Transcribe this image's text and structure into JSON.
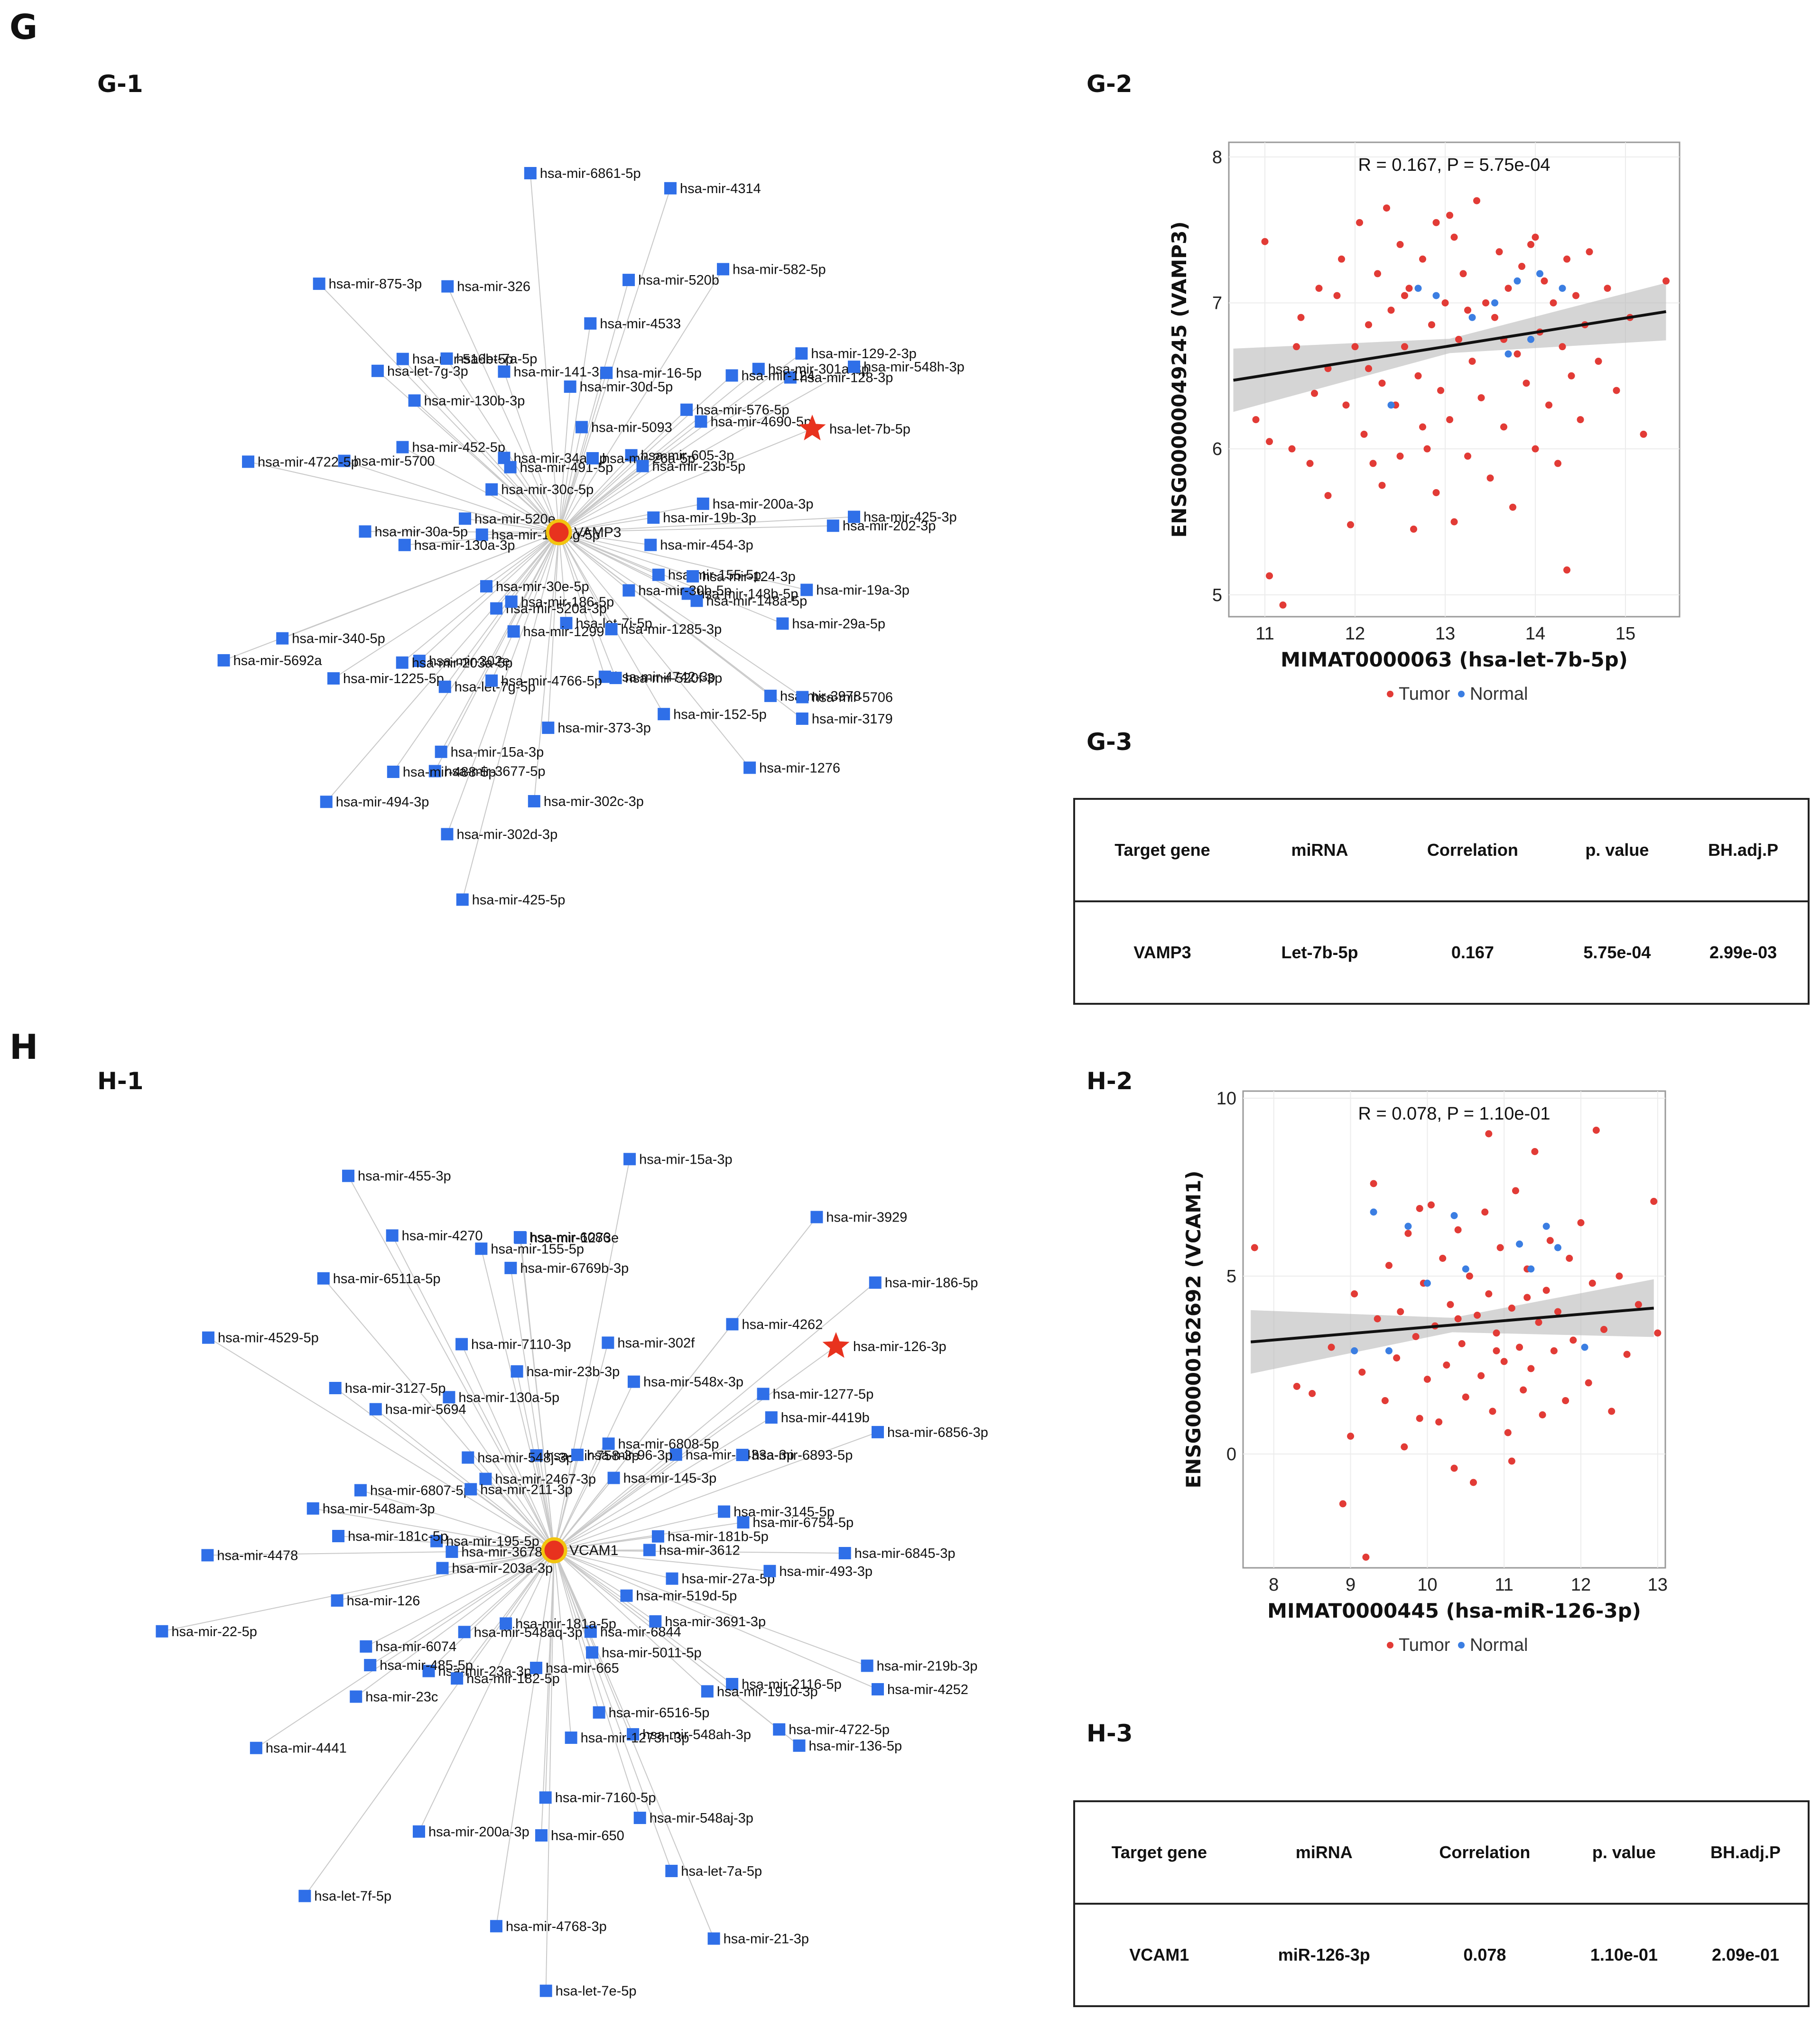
{
  "panel_G": {
    "letter": "G",
    "network_label": "G-1",
    "scatter_label": "G-2",
    "table_label": "G-3",
    "hub": "VAMP3",
    "highlight": "hsa-let-7b-5p",
    "nodes": [
      "hsa-mir-155-5p",
      "hsa-mir-148b-5p",
      "hsa-mir-3978",
      "hsa-mir-1276",
      "hsa-let-7i-5p",
      "hsa-mir-373-3p",
      "hsa-mir-15a-3p",
      "hsa-mir-302d-3p",
      "hsa-mir-520a-3p",
      "hsa-mir-302e",
      "hsa-mir-1225-5p",
      "hsa-mir-340-5p",
      "hsa-mir-520e",
      "hsa-mir-452-5p",
      "hsa-mir-516b-5p",
      "hsa-mir-326",
      "hsa-mir-34a-3p",
      "hsa-mir-30d-5p",
      "hsa-mir-520b",
      "hsa-mir-582-5p",
      "hsa-mir-605-3p",
      "hsa-mir-4690-5p",
      "hsa-mir-128-3p",
      "hsa-mir-425-3p",
      "hsa-mir-454-3p",
      "hsa-mir-148a-5p",
      "hsa-mir-29a-5p",
      "hsa-mir-3179",
      "hsa-mir-1285-3p",
      "hsa-mir-4742-3p",
      "hsa-mir-302c-3p",
      "hsa-mir-3677-5p",
      "hsa-mir-186-5p",
      "hsa-let-7g-5p",
      "hsa-mir-203a-5p",
      "hsa-mir-5692a",
      "hsa-mir-1273g-5p",
      "hsa-mir-130a-3p",
      "hsa-let-7g-3p",
      "hsa-mir-875-3p",
      "hsa-mir-491-5p",
      "hsa-mir-141-3p",
      "hsa-mir-4533",
      "hsa-mir-4314",
      "hsa-mir-26a-5p",
      "hsa-mir-576-5p",
      "hsa-mir-301a-3p",
      "hsa-mir-548h-3p",
      "hsa-mir-19b-3p",
      "hsa-mir-124-3p",
      "hsa-mir-19a-3p",
      "hsa-mir-5706",
      "hsa-mir-30b-5p",
      "hsa-mir-520f-3p",
      "hsa-mir-152-5p",
      "hsa-mir-425-5p",
      "hsa-mir-1299",
      "hsa-mir-4766-5p",
      "hsa-mir-488-5p",
      "hsa-mir-494-3p",
      "hsa-mir-30e-5p",
      "hsa-mir-30a-5p",
      "hsa-mir-5700",
      "hsa-mir-4722-5p",
      "hsa-mir-30c-5p",
      "hsa-mir-130b-3p",
      "hsa-let-7a-5p",
      "hsa-mir-6861-5p",
      "hsa-mir-5093",
      "hsa-mir-16-5p",
      "hsa-mir-124",
      "hsa-mir-129-2-3p",
      "hsa-mir-23b-5p",
      "hsa-mir-200a-3p",
      "hsa-mir-202-3p"
    ],
    "chart_data": {
      "type": "scatter",
      "stat_text": "R = 0.167, P = 5.75e-04",
      "xlabel": "MIMAT0000063 (hsa-let-7b-5p)",
      "ylabel": "ENSG00000049245 (VAMP3)",
      "xlim": [
        10.6,
        15.6
      ],
      "ylim": [
        4.85,
        8.1
      ],
      "xticks": [
        "11",
        "12",
        "13",
        "14",
        "15"
      ],
      "yticks": [
        "5",
        "6",
        "7",
        "8"
      ],
      "fit": {
        "x": [
          10.65,
          15.45
        ],
        "y": [
          6.47,
          6.94
        ]
      },
      "legend": [
        "Tumor",
        "Normal"
      ],
      "series": [
        {
          "name": "Tumor",
          "color": "#e23b36",
          "points": [
            [
              10.9,
              6.2
            ],
            [
              11.0,
              7.42
            ],
            [
              11.05,
              6.05
            ],
            [
              11.05,
              5.13
            ],
            [
              11.2,
              4.93
            ],
            [
              11.3,
              6.0
            ],
            [
              11.35,
              6.7
            ],
            [
              11.4,
              6.9
            ],
            [
              11.5,
              5.9
            ],
            [
              11.55,
              6.38
            ],
            [
              11.6,
              7.1
            ],
            [
              11.7,
              5.68
            ],
            [
              11.7,
              6.55
            ],
            [
              11.8,
              7.05
            ],
            [
              11.85,
              7.3
            ],
            [
              11.9,
              6.3
            ],
            [
              11.95,
              5.48
            ],
            [
              12.0,
              6.7
            ],
            [
              12.05,
              7.55
            ],
            [
              12.1,
              6.1
            ],
            [
              12.15,
              6.85
            ],
            [
              12.2,
              5.9
            ],
            [
              12.25,
              7.2
            ],
            [
              12.3,
              6.45
            ],
            [
              12.3,
              5.75
            ],
            [
              12.35,
              7.65
            ],
            [
              12.4,
              6.95
            ],
            [
              12.45,
              6.3
            ],
            [
              12.5,
              7.4
            ],
            [
              12.5,
              5.95
            ],
            [
              12.55,
              6.7
            ],
            [
              12.6,
              7.1
            ],
            [
              12.65,
              5.45
            ],
            [
              12.7,
              6.5
            ],
            [
              12.75,
              7.3
            ],
            [
              12.8,
              6.0
            ],
            [
              12.85,
              6.85
            ],
            [
              12.9,
              7.55
            ],
            [
              12.9,
              5.7
            ],
            [
              12.95,
              6.4
            ],
            [
              13.0,
              7.0
            ],
            [
              13.05,
              6.2
            ],
            [
              13.1,
              7.45
            ],
            [
              13.1,
              5.5
            ],
            [
              13.15,
              6.75
            ],
            [
              13.2,
              7.2
            ],
            [
              13.25,
              5.95
            ],
            [
              13.3,
              6.6
            ],
            [
              13.35,
              7.7
            ],
            [
              13.4,
              6.35
            ],
            [
              13.45,
              7.0
            ],
            [
              13.5,
              5.8
            ],
            [
              13.55,
              6.9
            ],
            [
              13.6,
              7.35
            ],
            [
              13.65,
              6.15
            ],
            [
              13.7,
              7.1
            ],
            [
              13.75,
              5.6
            ],
            [
              13.8,
              6.65
            ],
            [
              13.85,
              7.25
            ],
            [
              13.9,
              6.45
            ],
            [
              13.95,
              7.4
            ],
            [
              14.0,
              6.0
            ],
            [
              14.05,
              6.8
            ],
            [
              14.1,
              7.15
            ],
            [
              14.15,
              6.3
            ],
            [
              14.2,
              7.0
            ],
            [
              14.25,
              5.9
            ],
            [
              14.3,
              6.7
            ],
            [
              14.35,
              7.3
            ],
            [
              14.4,
              6.5
            ],
            [
              14.45,
              7.05
            ],
            [
              14.5,
              6.2
            ],
            [
              14.55,
              6.85
            ],
            [
              14.6,
              7.35
            ],
            [
              14.7,
              6.6
            ],
            [
              14.8,
              7.1
            ],
            [
              14.9,
              6.4
            ],
            [
              15.05,
              6.9
            ],
            [
              15.2,
              6.1
            ],
            [
              15.45,
              7.15
            ],
            [
              14.35,
              5.17
            ],
            [
              13.05,
              7.6
            ],
            [
              12.75,
              6.15
            ],
            [
              13.25,
              6.95
            ],
            [
              12.55,
              7.05
            ],
            [
              13.65,
              6.75
            ],
            [
              12.15,
              6.55
            ],
            [
              14.0,
              7.45
            ]
          ]
        },
        {
          "name": "Normal",
          "color": "#3b7ee2",
          "points": [
            [
              12.4,
              6.3
            ],
            [
              12.9,
              7.05
            ],
            [
              13.3,
              6.9
            ],
            [
              13.55,
              7.0
            ],
            [
              13.8,
              7.15
            ],
            [
              13.95,
              6.75
            ],
            [
              14.05,
              7.2
            ],
            [
              14.3,
              7.1
            ],
            [
              13.7,
              6.65
            ],
            [
              12.7,
              7.1
            ]
          ]
        }
      ]
    },
    "table": {
      "headers": [
        "Target gene",
        "miRNA",
        "Correlation",
        "p. value",
        "BH.adj.P"
      ],
      "row": [
        "VAMP3",
        "Let-7b-5p",
        "0.167",
        "5.75e-04",
        "2.99e-03"
      ]
    }
  },
  "panel_H": {
    "letter": "H",
    "network_label": "H-1",
    "scatter_label": "H-2",
    "table_label": "H-3",
    "hub": "VCAM1",
    "highlight": "hsa-mir-126-3p",
    "nodes": [
      "hsa-mir-27a-5p",
      "hsa-mir-2116-5p",
      "hsa-mir-136-5p",
      "hsa-mir-21-3p",
      "hsa-mir-6844",
      "hsa-mir-6516-5p",
      "hsa-mir-650",
      "hsa-let-7f-5p",
      "hsa-mir-181a-5p",
      "hsa-mir-23a-3p",
      "hsa-mir-126",
      "hsa-mir-22-5p",
      "hsa-mir-3678-3p",
      "hsa-mir-6807-5p",
      "hsa-mir-5694",
      "hsa-mir-6511a-5p",
      "hsa-mir-2467-3p",
      "hsa-mir-7110-3p",
      "hsa-mir-6769b-3p",
      "hsa-mir-6086",
      "hsa-mir-6808-5p",
      "hsa-mir-4433a-3p",
      "hsa-mir-1277-5p",
      "hsa-mir-186-5p",
      "hsa-mir-3612",
      "hsa-mir-6754-5p",
      "hsa-mir-6845-3p",
      "hsa-mir-4252",
      "hsa-mir-519d-5p",
      "hsa-mir-548ah-3p",
      "hsa-mir-548aj-3p",
      "hsa-let-7e-5p",
      "hsa-mir-665",
      "hsa-mir-182-5p",
      "hsa-mir-200a-3p",
      "hsa-mir-4441",
      "hsa-mir-203a-3p",
      "hsa-mir-6074",
      "hsa-mir-548am-3p",
      "hsa-mir-4529-5p",
      "hsa-mir-211-3p",
      "hsa-mir-130a-5p",
      "hsa-mir-155-5p",
      "hsa-mir-455-3p",
      "hsa-mir-758-3p",
      "hsa-mir-302f",
      "hsa-mir-4262",
      "hsa-mir-3929",
      "hsa-mir-145-3p",
      "hsa-mir-6893-5p",
      "hsa-mir-493-3p",
      "hsa-mir-219b-3p",
      "hsa-mir-3691-3p",
      "hsa-mir-1910-3p",
      "hsa-mir-4722-5p",
      "hsa-let-7a-5p",
      "hsa-mir-5011-5p",
      "hsa-mir-1273h-3p",
      "hsa-mir-7160-5p",
      "hsa-mir-4768-3p",
      "hsa-mir-548aq-3p",
      "hsa-mir-485-5p",
      "hsa-mir-23c",
      "hsa-mir-4478",
      "hsa-mir-195-5p",
      "hsa-mir-181c-5p",
      "hsa-mir-3127-5p",
      "hsa-mir-4270",
      "hsa-mir-548j-3p",
      "hsa-mir-23b-3p",
      "hsa-mir-1273e",
      "hsa-mir-15a-3p",
      "hsa-mir-96-3p",
      "hsa-mir-548x-3p",
      "hsa-mir-4419b",
      "hsa-mir-6856-3p",
      "hsa-mir-181b-5p",
      "hsa-mir-3145-5p"
    ],
    "chart_data": {
      "type": "scatter",
      "stat_text": "R = 0.078, P = 1.10e-01",
      "xlabel": "MIMAT0000445 (hsa-miR-126-3p)",
      "ylabel": "ENSG00000162692 (VCAM1)",
      "xlim": [
        7.6,
        13.1
      ],
      "ylim": [
        -3.2,
        10.2
      ],
      "xticks": [
        "8",
        "9",
        "10",
        "11",
        "12",
        "13"
      ],
      "yticks": [
        "0",
        "5",
        "10"
      ],
      "fit": {
        "x": [
          7.7,
          12.95
        ],
        "y": [
          3.15,
          4.1
        ]
      },
      "legend": [
        "Tumor",
        "Normal"
      ],
      "series": [
        {
          "name": "Tumor",
          "color": "#e23b36",
          "points": [
            [
              7.75,
              5.8
            ],
            [
              8.3,
              1.9
            ],
            [
              8.5,
              1.7
            ],
            [
              8.75,
              3.0
            ],
            [
              8.9,
              -1.4
            ],
            [
              9.0,
              0.5
            ],
            [
              9.05,
              4.5
            ],
            [
              9.15,
              2.3
            ],
            [
              9.2,
              -2.9
            ],
            [
              9.3,
              7.6
            ],
            [
              9.35,
              3.8
            ],
            [
              9.45,
              1.5
            ],
            [
              9.5,
              5.3
            ],
            [
              9.6,
              2.7
            ],
            [
              9.65,
              4.0
            ],
            [
              9.7,
              0.2
            ],
            [
              9.75,
              6.2
            ],
            [
              9.85,
              3.3
            ],
            [
              9.9,
              1.0
            ],
            [
              9.95,
              4.8
            ],
            [
              10.0,
              2.1
            ],
            [
              10.05,
              7.0
            ],
            [
              10.1,
              3.6
            ],
            [
              10.15,
              0.9
            ],
            [
              10.2,
              5.5
            ],
            [
              10.25,
              2.5
            ],
            [
              10.3,
              4.2
            ],
            [
              10.35,
              -0.4
            ],
            [
              10.4,
              6.3
            ],
            [
              10.45,
              3.1
            ],
            [
              10.5,
              1.6
            ],
            [
              10.55,
              5.0
            ],
            [
              10.6,
              -0.8
            ],
            [
              10.65,
              3.9
            ],
            [
              10.7,
              2.2
            ],
            [
              10.75,
              6.8
            ],
            [
              10.8,
              4.5
            ],
            [
              10.85,
              1.2
            ],
            [
              10.9,
              3.4
            ],
            [
              10.95,
              5.8
            ],
            [
              11.0,
              2.6
            ],
            [
              11.05,
              0.6
            ],
            [
              11.1,
              4.1
            ],
            [
              11.15,
              7.4
            ],
            [
              11.2,
              3.0
            ],
            [
              11.25,
              1.8
            ],
            [
              11.3,
              5.2
            ],
            [
              11.35,
              2.4
            ],
            [
              11.4,
              8.5
            ],
            [
              11.45,
              3.7
            ],
            [
              11.5,
              1.1
            ],
            [
              11.55,
              4.6
            ],
            [
              11.6,
              6.0
            ],
            [
              11.65,
              2.9
            ],
            [
              11.7,
              4.0
            ],
            [
              11.8,
              1.5
            ],
            [
              11.85,
              5.5
            ],
            [
              11.9,
              3.2
            ],
            [
              12.0,
              6.5
            ],
            [
              12.1,
              2.0
            ],
            [
              12.15,
              4.8
            ],
            [
              12.2,
              9.1
            ],
            [
              12.3,
              3.5
            ],
            [
              12.4,
              1.2
            ],
            [
              12.5,
              5.0
            ],
            [
              12.6,
              2.8
            ],
            [
              12.75,
              4.2
            ],
            [
              12.95,
              7.1
            ],
            [
              13.0,
              3.4
            ],
            [
              10.8,
              9.0
            ],
            [
              11.1,
              -0.2
            ],
            [
              9.9,
              6.9
            ],
            [
              10.4,
              3.8
            ],
            [
              10.9,
              2.9
            ],
            [
              11.3,
              4.4
            ]
          ]
        },
        {
          "name": "Normal",
          "color": "#3b7ee2",
          "points": [
            [
              9.05,
              2.9
            ],
            [
              9.3,
              6.8
            ],
            [
              9.5,
              2.9
            ],
            [
              9.75,
              6.4
            ],
            [
              10.0,
              4.8
            ],
            [
              10.35,
              6.7
            ],
            [
              10.5,
              5.2
            ],
            [
              11.2,
              5.9
            ],
            [
              11.35,
              5.2
            ],
            [
              11.55,
              6.4
            ],
            [
              11.7,
              5.8
            ],
            [
              12.05,
              3.0
            ]
          ]
        }
      ]
    },
    "table": {
      "headers": [
        "Target gene",
        "miRNA",
        "Correlation",
        "p. value",
        "BH.adj.P"
      ],
      "row": [
        "VCAM1",
        "miR-126-3p",
        "0.078",
        "1.10e-01",
        "2.09e-01"
      ]
    }
  }
}
